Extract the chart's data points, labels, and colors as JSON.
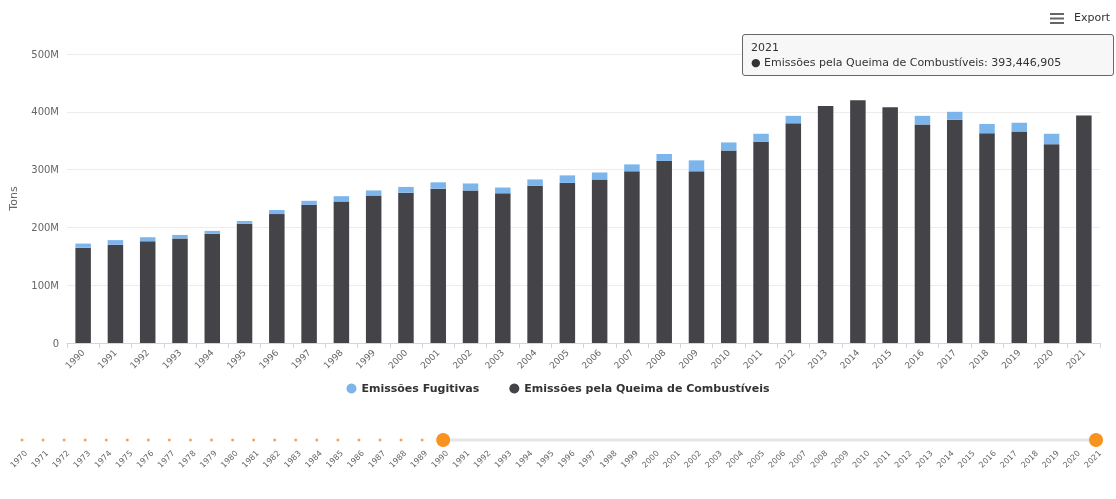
{
  "chart_data": {
    "type": "bar",
    "stacked": true,
    "ylabel": "Tons",
    "categories": [
      "1990",
      "1991",
      "1992",
      "1993",
      "1994",
      "1995",
      "1996",
      "1997",
      "1998",
      "1999",
      "2000",
      "2001",
      "2002",
      "2003",
      "2004",
      "2005",
      "2006",
      "2007",
      "2008",
      "2009",
      "2010",
      "2011",
      "2012",
      "2013",
      "2014",
      "2015",
      "2016",
      "2017",
      "2018",
      "2019",
      "2020",
      "2021"
    ],
    "series": [
      {
        "name": "Emissões pela Queima de Combustíveis",
        "color": "#434348",
        "values": [
          165000000,
          170000000,
          176000000,
          181000000,
          189000000,
          206000000,
          223000000,
          239000000,
          245000000,
          255000000,
          260000000,
          267000000,
          264000000,
          259000000,
          272000000,
          277000000,
          283000000,
          297000000,
          315000000,
          297000000,
          333000000,
          348000000,
          380000000,
          410000000,
          420000000,
          408000000,
          378000000,
          386000000,
          363000000,
          366000000,
          344000000,
          393446905
        ]
      },
      {
        "name": "Emissões Fugitivas",
        "color": "#7cb5ec",
        "values": [
          7000000,
          8000000,
          7000000,
          6000000,
          5000000,
          5000000,
          7000000,
          7000000,
          9000000,
          9000000,
          10000000,
          11000000,
          12000000,
          10000000,
          11000000,
          13000000,
          12000000,
          12000000,
          12000000,
          19000000,
          14000000,
          14000000,
          13000000,
          null,
          null,
          null,
          15000000,
          14000000,
          16000000,
          15000000,
          18000000,
          null
        ]
      }
    ],
    "ylim": [
      0,
      500000000
    ],
    "yticks": [
      0,
      {
        "value": 100000000,
        "label": "100M"
      },
      {
        "value": 200000000,
        "label": "200M"
      },
      {
        "value": 300000000,
        "label": "300M"
      },
      {
        "value": 400000000,
        "label": "400M"
      },
      {
        "value": 500000000,
        "label": "500M"
      }
    ],
    "grid": "y",
    "legend": "bottom",
    "annotations": [
      "2021\n● Emissões pela Queima de Combustíveis: 393,446,905",
      "Export",
      "1970",
      "1971",
      "1972",
      "1973",
      "1974",
      "1975",
      "1976",
      "1977",
      "1978",
      "1979",
      "1980",
      "1981",
      "1982",
      "1983",
      "1984",
      "1985",
      "1986",
      "1987",
      "1988",
      "1989",
      "1990",
      "1991",
      "1992",
      "1993",
      "1994",
      "1995",
      "1996",
      "1997",
      "1998",
      "1999",
      "2000",
      "2001",
      "2002",
      "2003",
      "2004",
      "2005",
      "2006",
      "2007",
      "2008",
      "2009",
      "2010",
      "2011",
      "2012",
      "2013",
      "2014",
      "2015",
      "2016",
      "2017",
      "2018",
      "2019",
      "2020",
      "2021"
    ]
  }
}
